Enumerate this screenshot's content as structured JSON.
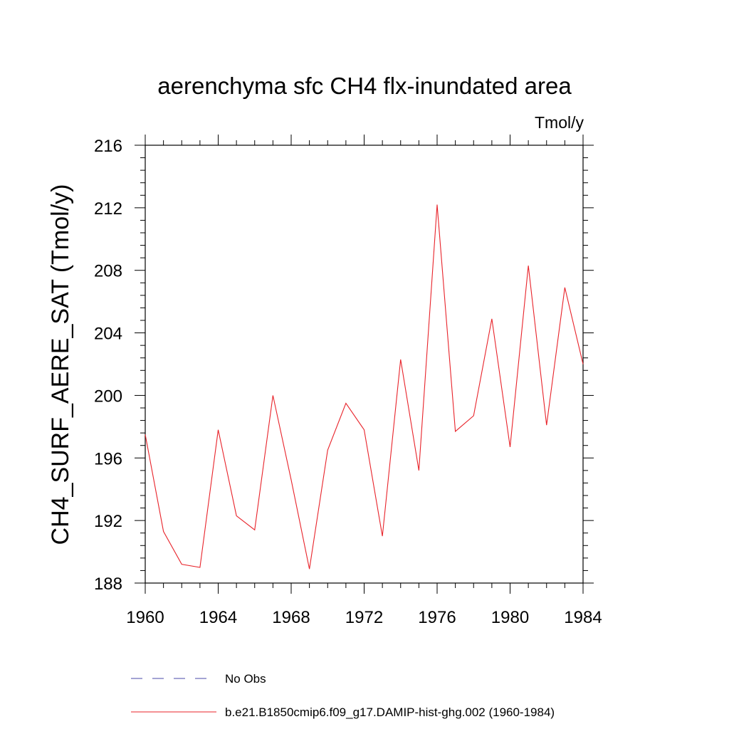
{
  "chart_data": {
    "type": "line",
    "title": "aerenchyma sfc CH4 flx-inundated area",
    "units": "Tmol/y",
    "ylabel": "CH4_SURF_AERE_SAT  (Tmol/y)",
    "xlabel": "",
    "xlim": [
      1960,
      1984
    ],
    "ylim": [
      188,
      216
    ],
    "x_ticks": [
      1960,
      1964,
      1968,
      1972,
      1976,
      1980,
      1984
    ],
    "x_tick_labels": [
      "1960",
      "1964",
      "1968",
      "1972",
      "1976",
      "1980",
      "1984"
    ],
    "y_ticks": [
      188,
      192,
      196,
      200,
      204,
      208,
      212,
      216
    ],
    "y_tick_labels": [
      "188",
      "192",
      "196",
      "200",
      "204",
      "208",
      "212",
      "216"
    ],
    "grid": false,
    "legend_position": "bottom",
    "legend": [
      {
        "label": "No Obs",
        "style": "dashed",
        "color": "#4a4aa8"
      },
      {
        "label": "b.e21.B1850cmip6.f09_g17.DAMIP-hist-ghg.002 (1960-1984)",
        "style": "solid",
        "color": "#e8232a"
      }
    ],
    "series": [
      {
        "color": "#e8232a",
        "x": [
          1960,
          1961,
          1962,
          1963,
          1964,
          1965,
          1966,
          1967,
          1968,
          1969,
          1970,
          1971,
          1972,
          1973,
          1974,
          1975,
          1976,
          1977,
          1978,
          1979,
          1980,
          1981,
          1982,
          1983,
          1984
        ],
        "y": [
          197.5,
          191.3,
          189.2,
          189.0,
          197.8,
          192.3,
          191.4,
          200.0,
          194.6,
          188.9,
          196.5,
          199.5,
          197.8,
          191.0,
          202.3,
          195.2,
          212.2,
          197.7,
          198.7,
          204.9,
          196.7,
          208.3,
          198.1,
          206.9,
          202.0
        ]
      }
    ]
  }
}
